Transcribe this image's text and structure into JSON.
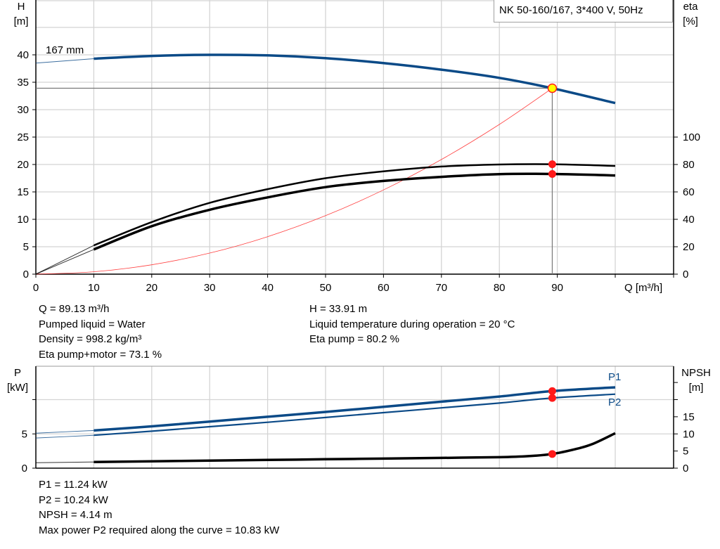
{
  "chart_data": [
    {
      "type": "line",
      "title": "NK 50-160/167, 3*400 V, 50Hz",
      "xlabel": "Q [m³/h]",
      "ylabel_left": [
        "H",
        "[m]"
      ],
      "ylabel_right": [
        "eta",
        "[%]"
      ],
      "xlim": [
        0,
        100
      ],
      "ylim_left": [
        0,
        45
      ],
      "ylim_right": [
        0,
        100
      ],
      "x_ticks": [
        0,
        10,
        20,
        30,
        40,
        50,
        60,
        70,
        80,
        90
      ],
      "y_ticks_left": [
        0,
        5,
        10,
        15,
        20,
        25,
        30,
        35,
        40
      ],
      "y_ticks_right": [
        0,
        20,
        40,
        60,
        80,
        100
      ],
      "grid": true,
      "curve_label": "167 mm",
      "series": [
        {
          "key": "H",
          "axis": "left",
          "color": "#0b4a87",
          "x": [
            0,
            10,
            20,
            30,
            40,
            50,
            60,
            70,
            80,
            89.13,
            100
          ],
          "y": [
            38.5,
            39.3,
            39.8,
            40.0,
            39.9,
            39.4,
            38.5,
            37.3,
            35.8,
            33.91,
            31.2
          ]
        },
        {
          "key": "eta_pump",
          "axis": "right",
          "color": "#000000",
          "x": [
            0,
            10,
            20,
            30,
            40,
            50,
            60,
            70,
            80,
            89.13,
            100
          ],
          "y": [
            0,
            21,
            38,
            52,
            62,
            70,
            75,
            78.5,
            80,
            80.2,
            79
          ]
        },
        {
          "key": "eta_pump_motor",
          "axis": "right",
          "color": "#000000",
          "x": [
            0,
            10,
            20,
            30,
            40,
            50,
            60,
            70,
            80,
            89.13,
            100
          ],
          "y": [
            0,
            18,
            35,
            47,
            56,
            63.5,
            68,
            71,
            73,
            73.1,
            72
          ]
        },
        {
          "key": "system_curve",
          "axis": "left",
          "color": "#ff4040",
          "x": [
            0,
            10,
            20,
            30,
            40,
            50,
            60,
            70,
            80,
            89.13
          ],
          "y": [
            0,
            0.43,
            1.71,
            3.84,
            6.83,
            10.67,
            15.36,
            20.91,
            27.31,
            33.91
          ]
        }
      ],
      "operating_point": {
        "Q": 89.13,
        "H": 33.91,
        "eta_pump": 80.2,
        "eta_pump_motor": 73.1
      }
    },
    {
      "type": "line",
      "ylabel_left": [
        "P",
        "[kW]"
      ],
      "ylabel_right": [
        "NPSH",
        "[m]"
      ],
      "xlim": [
        0,
        100
      ],
      "ylim_left": [
        0,
        15
      ],
      "ylim_right": [
        0,
        30
      ],
      "y_ticks_left": [
        0,
        5,
        10
      ],
      "y_tick_labels_left": [
        "0",
        "5",
        ""
      ],
      "y_ticks_right": [
        0,
        5,
        10,
        15,
        20,
        25
      ],
      "y_tick_labels_right": [
        "0",
        "5",
        "10",
        "15",
        "",
        ""
      ],
      "grid": true,
      "series": [
        {
          "key": "P1",
          "name": "P1",
          "axis": "left",
          "color": "#0b4a87",
          "x": [
            0,
            10,
            20,
            30,
            40,
            50,
            60,
            70,
            80,
            89.13,
            100
          ],
          "y": [
            5.1,
            5.5,
            6.1,
            6.8,
            7.5,
            8.2,
            8.95,
            9.7,
            10.45,
            11.24,
            11.8
          ]
        },
        {
          "key": "P2",
          "name": "P2",
          "axis": "left",
          "color": "#0b4a87",
          "x": [
            0,
            10,
            20,
            30,
            40,
            50,
            60,
            70,
            80,
            89.13,
            100
          ],
          "y": [
            4.4,
            4.8,
            5.4,
            6.05,
            6.7,
            7.4,
            8.1,
            8.8,
            9.5,
            10.24,
            10.8
          ]
        },
        {
          "key": "NPSH",
          "axis": "right",
          "color": "#000000",
          "x": [
            0,
            10,
            20,
            30,
            40,
            50,
            60,
            70,
            80,
            85,
            89.13,
            93,
            96,
            100
          ],
          "y": [
            1.6,
            1.8,
            2.0,
            2.2,
            2.4,
            2.6,
            2.8,
            3.0,
            3.2,
            3.5,
            4.14,
            5.5,
            7.0,
            10.2
          ]
        }
      ],
      "operating_point": {
        "Q": 89.13,
        "P1": 11.24,
        "P2": 10.24,
        "NPSH": 4.14
      }
    }
  ],
  "info_top": {
    "left": [
      "Q = 89.13 m³/h",
      "Pumped liquid = Water",
      "Density = 998.2 kg/m³",
      "Eta pump+motor = 73.1 %"
    ],
    "right": [
      "H = 33.91 m",
      "Liquid temperature during operation = 20 °C",
      "Eta pump = 80.2 %"
    ]
  },
  "info_bottom": [
    "P1 = 11.24 kW",
    "P2 = 10.24 kW",
    "NPSH = 4.14 m",
    "Max power P2 required along the curve = 10.83 kW"
  ],
  "colors": {
    "head": "#0b4a87",
    "system": "#ff4040",
    "point": "#ff1a1a",
    "duty_point_fill": "#ffff00",
    "grid": "#d4d4d4"
  }
}
